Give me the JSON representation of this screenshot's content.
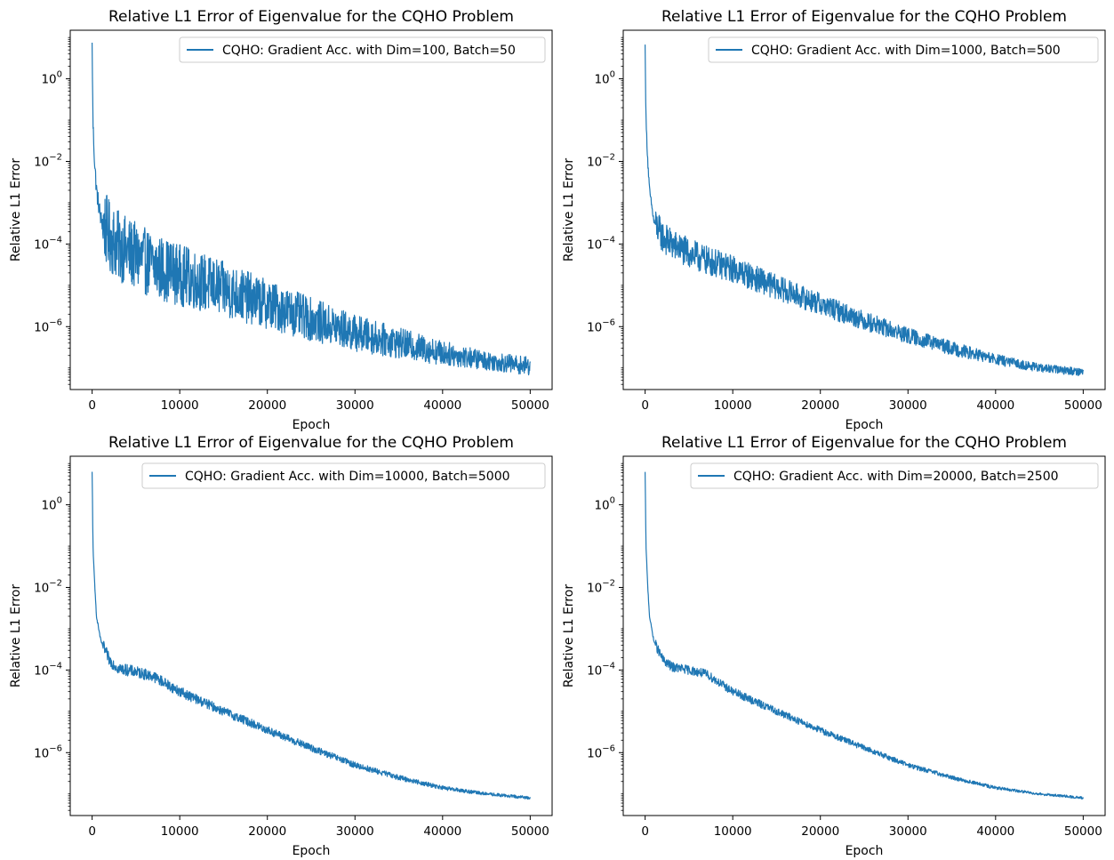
{
  "chart_data": [
    {
      "type": "line",
      "title": "Relative L1 Error of Eigenvalue for the CQHO Problem",
      "xlabel": "Epoch",
      "ylabel": "Relative L1 Error",
      "xlim": [
        -2500,
        52500
      ],
      "ylim": [
        3e-08,
        15
      ],
      "yscale": "log",
      "xticks": [
        "0",
        "10000",
        "20000",
        "30000",
        "40000",
        "50000"
      ],
      "yticks": [
        {
          "base": "10",
          "exp": "0"
        },
        {
          "base": "10",
          "exp": "−2"
        },
        {
          "base": "10",
          "exp": "−4"
        },
        {
          "base": "10",
          "exp": "−6"
        }
      ],
      "legend_position": "top-right",
      "series": [
        {
          "name": "CQHO: Gradient Acc. with Dim=100, Batch=50",
          "color": "#1f77b4",
          "x": [
            0,
            100,
            300,
            500,
            1000,
            2000,
            3000,
            5000,
            7000,
            10000,
            15000,
            20000,
            25000,
            30000,
            35000,
            40000,
            45000,
            50000
          ],
          "y": [
            6.0,
            0.08,
            0.008,
            0.002,
            0.0004,
            0.00015,
            9e-05,
            5e-05,
            3e-05,
            1.8e-05,
            8e-06,
            3.5e-06,
            1.5e-06,
            7e-07,
            4e-07,
            2.3e-07,
            1.5e-07,
            1.1e-07
          ],
          "spread": 0.9
        }
      ]
    },
    {
      "type": "line",
      "title": "Relative L1 Error of Eigenvalue for the CQHO Problem",
      "xlabel": "Epoch",
      "ylabel": "Relative L1 Error",
      "xlim": [
        -2500,
        52500
      ],
      "ylim": [
        3e-08,
        15
      ],
      "yscale": "log",
      "xticks": [
        "0",
        "10000",
        "20000",
        "30000",
        "40000",
        "50000"
      ],
      "yticks": [
        {
          "base": "10",
          "exp": "0"
        },
        {
          "base": "10",
          "exp": "−2"
        },
        {
          "base": "10",
          "exp": "−4"
        },
        {
          "base": "10",
          "exp": "−6"
        }
      ],
      "legend_position": "top-right",
      "series": [
        {
          "name": "CQHO: Gradient Acc. with Dim=1000, Batch=500",
          "color": "#1f77b4",
          "x": [
            0,
            100,
            300,
            500,
            1000,
            2000,
            3000,
            5000,
            7000,
            10000,
            15000,
            20000,
            25000,
            30000,
            35000,
            40000,
            45000,
            50000
          ],
          "y": [
            6.0,
            0.1,
            0.01,
            0.002,
            0.00035,
            0.00015,
            0.0001,
            6e-05,
            4e-05,
            2.5e-05,
            9e-06,
            3.5e-06,
            1.4e-06,
            6e-07,
            3e-07,
            1.6e-07,
            1e-07,
            8e-08
          ],
          "spread": 0.4
        }
      ]
    },
    {
      "type": "line",
      "title": "Relative L1 Error of Eigenvalue for the CQHO Problem",
      "xlabel": "Epoch",
      "ylabel": "Relative L1 Error",
      "xlim": [
        -2500,
        52500
      ],
      "ylim": [
        3e-08,
        15
      ],
      "yscale": "log",
      "xticks": [
        "0",
        "10000",
        "20000",
        "30000",
        "40000",
        "50000"
      ],
      "yticks": [
        {
          "base": "10",
          "exp": "0"
        },
        {
          "base": "10",
          "exp": "−2"
        },
        {
          "base": "10",
          "exp": "−4"
        },
        {
          "base": "10",
          "exp": "−6"
        }
      ],
      "legend_position": "top-right",
      "series": [
        {
          "name": "CQHO: Gradient Acc. with Dim=10000, Batch=5000",
          "color": "#1f77b4",
          "x": [
            0,
            100,
            300,
            500,
            1000,
            2000,
            3000,
            5000,
            7000,
            10000,
            15000,
            20000,
            25000,
            30000,
            35000,
            40000,
            45000,
            50000
          ],
          "y": [
            6.0,
            0.1,
            0.01,
            0.002,
            0.0005,
            0.00017,
            0.00011,
            9e-05,
            7e-05,
            3e-05,
            1e-05,
            3.5e-06,
            1.3e-06,
            5e-07,
            2.5e-07,
            1.4e-07,
            1e-07,
            8e-08
          ],
          "spread": 0.15
        }
      ]
    },
    {
      "type": "line",
      "title": "Relative L1 Error of Eigenvalue for the CQHO Problem",
      "xlabel": "Epoch",
      "ylabel": "Relative L1 Error",
      "xlim": [
        -2500,
        52500
      ],
      "ylim": [
        3e-08,
        15
      ],
      "yscale": "log",
      "xticks": [
        "0",
        "10000",
        "20000",
        "30000",
        "40000",
        "50000"
      ],
      "yticks": [
        {
          "base": "10",
          "exp": "0"
        },
        {
          "base": "10",
          "exp": "−2"
        },
        {
          "base": "10",
          "exp": "−4"
        },
        {
          "base": "10",
          "exp": "−6"
        }
      ],
      "legend_position": "top-right",
      "series": [
        {
          "name": "CQHO: Gradient Acc. with Dim=20000, Batch=2500",
          "color": "#1f77b4",
          "x": [
            0,
            100,
            300,
            500,
            1000,
            2000,
            3000,
            5000,
            7000,
            10000,
            15000,
            20000,
            25000,
            30000,
            35000,
            40000,
            45000,
            50000
          ],
          "y": [
            6.0,
            0.1,
            0.01,
            0.002,
            0.0005,
            0.00018,
            0.00012,
            0.0001,
            8e-05,
            3e-05,
            1e-05,
            3.5e-06,
            1.3e-06,
            5e-07,
            2.5e-07,
            1.4e-07,
            1e-07,
            8e-08
          ],
          "spread": 0.12
        }
      ]
    }
  ]
}
